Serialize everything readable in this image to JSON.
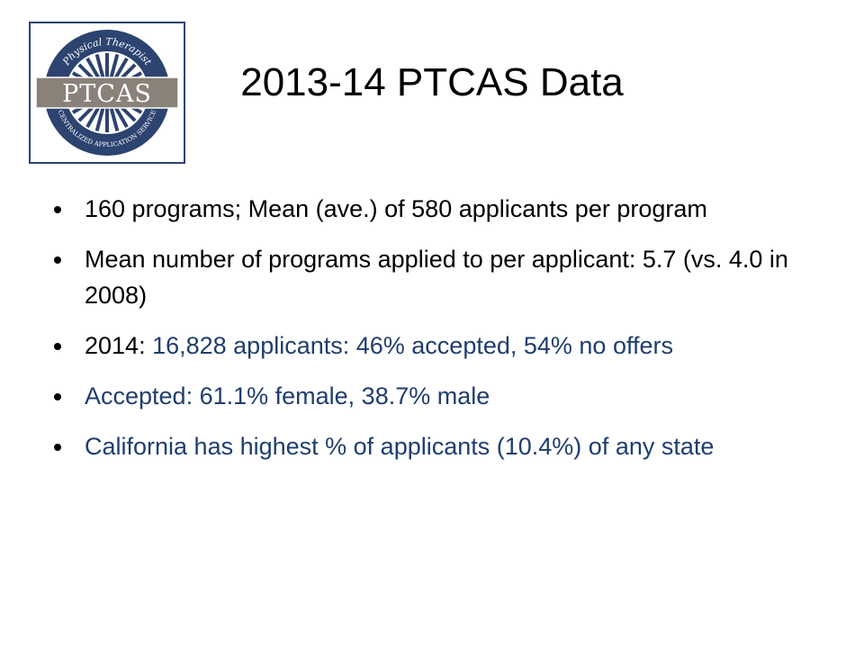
{
  "logo": {
    "icon": "ptcas-logo",
    "top_arc_text": "Physical Therapist",
    "band_text": "PTCAS",
    "bottom_arc_text": "CENTRALIZED APPLICATION SERVICE",
    "colors": {
      "navy": "#2d4370",
      "band": "#8a8279",
      "band_text": "#ffffff"
    }
  },
  "title": "2013-14 PTCAS Data",
  "bullets": [
    {
      "segments": [
        {
          "text": "160 programs; Mean (ave.) of 580 applicants per program",
          "color": "black"
        }
      ]
    },
    {
      "segments": [
        {
          "text": "Mean number of programs applied to per applicant: 5.7 (vs. 4.0 in 2008)",
          "color": "black"
        }
      ]
    },
    {
      "segments": [
        {
          "text": "2014: ",
          "color": "black"
        },
        {
          "text": "16,828 applicants: 46% accepted, 54% no offers",
          "color": "blue"
        }
      ]
    },
    {
      "segments": [
        {
          "text": "Accepted: 61.1% female, 38.7% male",
          "color": "blue"
        }
      ]
    },
    {
      "segments": [
        {
          "text": "California has highest % of applicants (10.4%) of any state",
          "color": "blue"
        }
      ]
    }
  ],
  "colors": {
    "text_black": "#000000",
    "text_blue": "#1f3e6e"
  }
}
